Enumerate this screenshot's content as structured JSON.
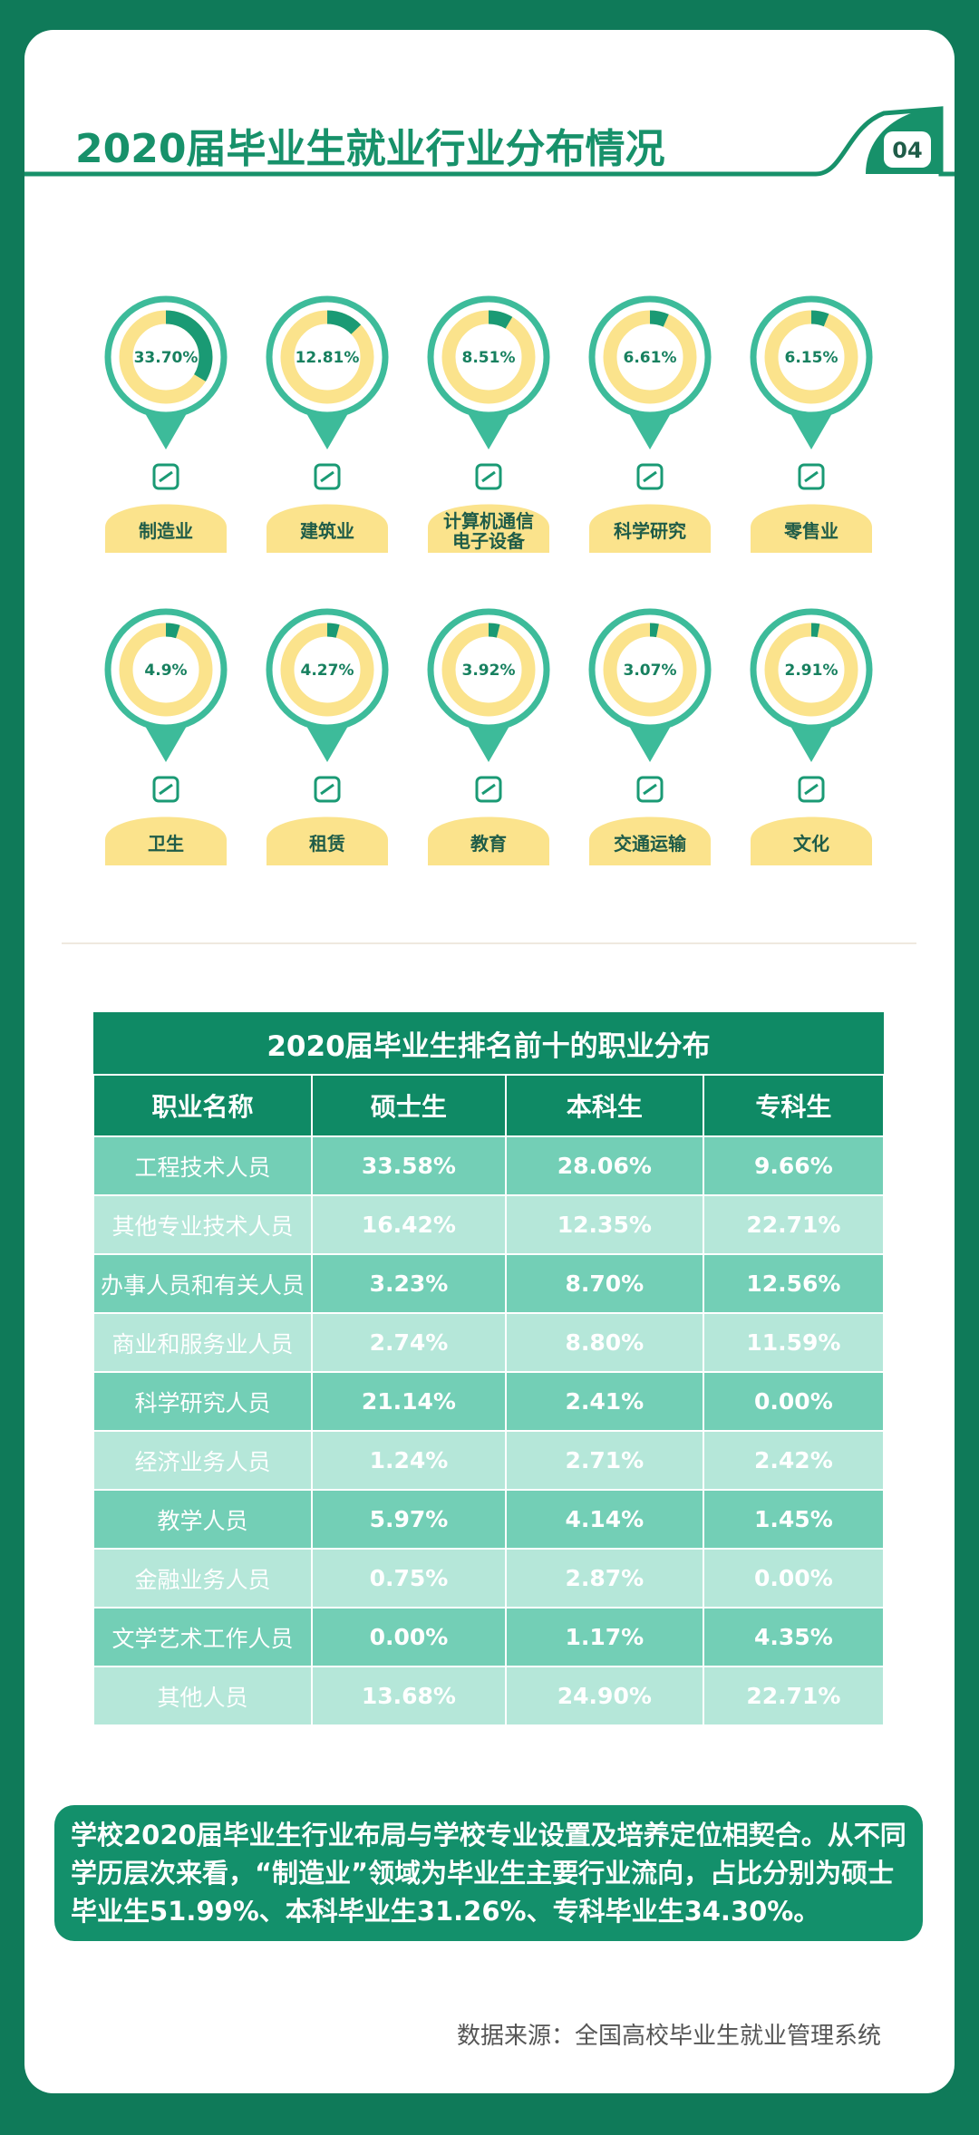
{
  "header": {
    "title": "2020届毕业生就业行业分布情况",
    "page": "04"
  },
  "industries": [
    {
      "name": "制造业",
      "value": 33.7,
      "value_label": "33.70%"
    },
    {
      "name": "建筑业",
      "value": 12.81,
      "value_label": "12.81%"
    },
    {
      "name": "计算机通信电子设备",
      "value": 8.51,
      "value_label": "8.51%"
    },
    {
      "name": "科学研究",
      "value": 6.61,
      "value_label": "6.61%"
    },
    {
      "name": "零售业",
      "value": 6.15,
      "value_label": "6.15%"
    },
    {
      "name": "卫生",
      "value": 4.9,
      "value_label": "4.9%"
    },
    {
      "name": "租赁",
      "value": 4.27,
      "value_label": "4.27%"
    },
    {
      "name": "教育",
      "value": 3.92,
      "value_label": "3.92%"
    },
    {
      "name": "交通运输",
      "value": 3.07,
      "value_label": "3.07%"
    },
    {
      "name": "文化",
      "value": 2.91,
      "value_label": "2.91%"
    }
  ],
  "table": {
    "title": "2020届毕业生排名前十的职业分布",
    "columns": [
      "职业名称",
      "硕士生",
      "本科生",
      "专科生"
    ],
    "rows": [
      [
        "工程技术人员",
        "33.58%",
        "28.06%",
        "9.66%"
      ],
      [
        "其他专业技术人员",
        "16.42%",
        "12.35%",
        "22.71%"
      ],
      [
        "办事人员和有关人员",
        "3.23%",
        "8.70%",
        "12.56%"
      ],
      [
        "商业和服务业人员",
        "2.74%",
        "8.80%",
        "11.59%"
      ],
      [
        "科学研究人员",
        "21.14%",
        "2.41%",
        "0.00%"
      ],
      [
        "经济业务人员",
        "1.24%",
        "2.71%",
        "2.42%"
      ],
      [
        "教学人员",
        "5.97%",
        "4.14%",
        "1.45%"
      ],
      [
        "金融业务人员",
        "0.75%",
        "2.87%",
        "0.00%"
      ],
      [
        "文学艺术工作人员",
        "0.00%",
        "1.17%",
        "4.35%"
      ],
      [
        "其他人员",
        "13.68%",
        "24.90%",
        "22.71%"
      ]
    ]
  },
  "note": "学校2020届毕业生行业布局与学校专业设置及培养定位相契合。从不同学历层次来看，“制造业”领域为毕业生主要行业流向，占比分别为硕士毕业生51.99%、本科毕业生31.26%、专科毕业生34.30%。",
  "source": "数据来源：全国高校毕业生就业管理系统"
}
